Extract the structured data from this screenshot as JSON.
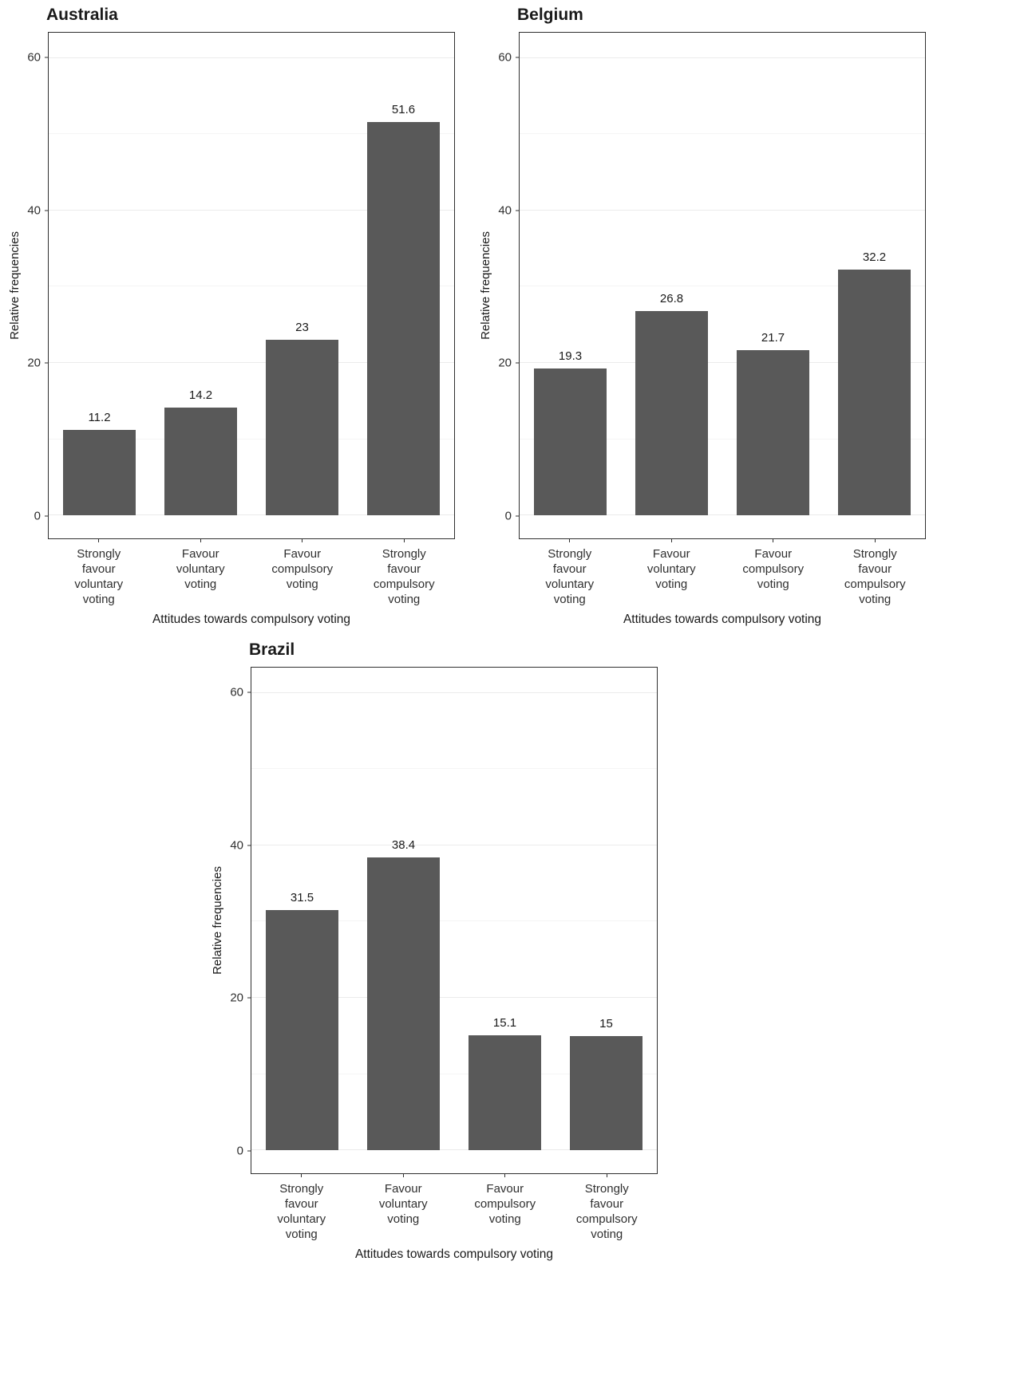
{
  "figure": {
    "bar_color": "#595959",
    "panel_border_color": "#2f2f2f",
    "grid_major_color": "#ebebeb",
    "grid_minor_color": "#f5f5f5",
    "text_color": "#1a1a1a",
    "axis_text_color": "#2f2f2f"
  },
  "chart_data": [
    {
      "type": "bar",
      "title": "Australia",
      "categories": [
        [
          "Strongly",
          "favour",
          "voluntary",
          "voting"
        ],
        [
          "Favour",
          "voluntary",
          "voting"
        ],
        [
          "Favour",
          "compulsory",
          "voting"
        ],
        [
          "Strongly",
          "favour",
          "compulsory",
          "voting"
        ]
      ],
      "values": [
        11.2,
        14.2,
        23,
        51.6
      ],
      "value_labels": [
        "11.2",
        "14.2",
        "23",
        "51.6"
      ],
      "xlabel": "Attitudes towards compulsory voting",
      "ylabel": "Relative frequencies",
      "ylim": [
        0,
        63.3
      ],
      "yticks": [
        0,
        20,
        40,
        60
      ],
      "yticks_minor": [
        10,
        30,
        50
      ],
      "grid": true,
      "legend": false
    },
    {
      "type": "bar",
      "title": "Belgium",
      "categories": [
        [
          "Strongly",
          "favour",
          "voluntary",
          "voting"
        ],
        [
          "Favour",
          "voluntary",
          "voting"
        ],
        [
          "Favour",
          "compulsory",
          "voting"
        ],
        [
          "Strongly",
          "favour",
          "compulsory",
          "voting"
        ]
      ],
      "values": [
        19.3,
        26.8,
        21.7,
        32.2
      ],
      "value_labels": [
        "19.3",
        "26.8",
        "21.7",
        "32.2"
      ],
      "xlabel": "Attitudes towards compulsory voting",
      "ylabel": "Relative frequencies",
      "ylim": [
        0,
        63.3
      ],
      "yticks": [
        0,
        20,
        40,
        60
      ],
      "yticks_minor": [
        10,
        30,
        50
      ],
      "grid": true,
      "legend": false
    },
    {
      "type": "bar",
      "title": "Brazil",
      "categories": [
        [
          "Strongly",
          "favour",
          "voluntary",
          "voting"
        ],
        [
          "Favour",
          "voluntary",
          "voting"
        ],
        [
          "Favour",
          "compulsory",
          "voting"
        ],
        [
          "Strongly",
          "favour",
          "compulsory",
          "voting"
        ]
      ],
      "values": [
        31.5,
        38.4,
        15.1,
        15
      ],
      "value_labels": [
        "31.5",
        "38.4",
        "15.1",
        "15"
      ],
      "xlabel": "Attitudes towards compulsory voting",
      "ylabel": "Relative frequencies",
      "ylim": [
        0,
        63.3
      ],
      "yticks": [
        0,
        20,
        40,
        60
      ],
      "yticks_minor": [
        10,
        30,
        50
      ],
      "grid": true,
      "legend": false
    }
  ]
}
